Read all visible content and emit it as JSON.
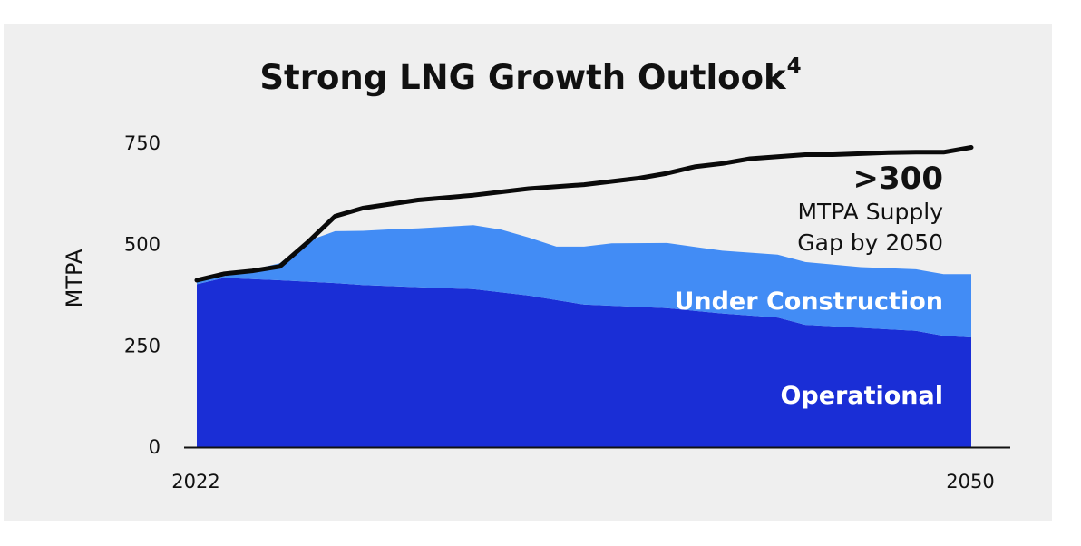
{
  "chart_data": {
    "type": "area",
    "title": "Strong LNG Growth Outlook",
    "title_superscript": "4",
    "ylabel": "MTPA",
    "xlabel": "",
    "xlim": [
      2022,
      2050
    ],
    "ylim": [
      0,
      750
    ],
    "x_ticks": [
      "2022",
      "2050"
    ],
    "y_ticks": [
      "0",
      "250",
      "500",
      "750"
    ],
    "grid": false,
    "colors": {
      "operational": "#1a2ed6",
      "under_construction": "#428cf5",
      "demand": "#0a0a0a",
      "background": "#efefef"
    },
    "series": [
      {
        "name": "Operational",
        "kind": "area",
        "x": [
          2022,
          2023,
          2025,
          2027,
          2028,
          2030,
          2032,
          2034,
          2036,
          2039,
          2041,
          2043,
          2044,
          2048,
          2049,
          2050
        ],
        "y": [
          402,
          418,
          412,
          405,
          400,
          395,
          390,
          374,
          352,
          343,
          330,
          320,
          302,
          287,
          275,
          271
        ]
      },
      {
        "name": "Under Construction",
        "kind": "stacked-area",
        "x": [
          2022,
          2023,
          2025,
          2026,
          2027,
          2029,
          2030,
          2032,
          2033,
          2035,
          2037,
          2039,
          2041,
          2044,
          2046,
          2048,
          2049,
          2050
        ],
        "y": [
          8,
          4,
          42,
          100,
          128,
          140,
          145,
          158,
          155,
          132,
          154,
          161,
          155,
          155,
          150,
          152,
          152,
          156
        ]
      },
      {
        "name": "Total demand",
        "kind": "line",
        "x": [
          2022,
          2023,
          2024,
          2025,
          2026,
          2027,
          2028,
          2030,
          2032,
          2034,
          2036,
          2038,
          2039,
          2040,
          2041,
          2042,
          2044,
          2045,
          2047,
          2048,
          2049,
          2050
        ],
        "y": [
          412,
          428,
          435,
          446,
          505,
          570,
          590,
          610,
          622,
          638,
          648,
          664,
          676,
          692,
          700,
          712,
          722,
          722,
          727,
          728,
          728,
          740
        ]
      }
    ],
    "annotations": {
      "gap_value": ">300",
      "gap_line1": "MTPA Supply",
      "gap_line2": "Gap by 2050",
      "under_construction_label": "Under Construction",
      "operational_label": "Operational"
    }
  }
}
